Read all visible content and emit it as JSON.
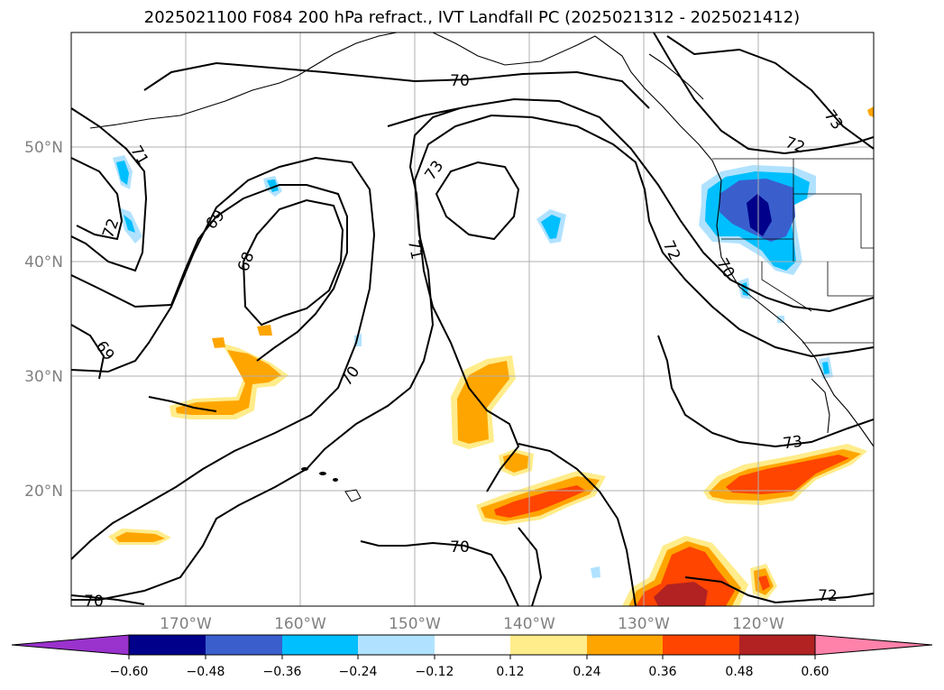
{
  "title": "2025021100 F084 200 hPa refract., IVT Landfall PC (2025021312 - 2025021412)",
  "map": {
    "lat_ticks": [
      "20°N",
      "30°N",
      "40°N",
      "50°N"
    ],
    "lon_ticks": [
      "170°W",
      "160°W",
      "150°W",
      "140°W",
      "130°W",
      "120°W"
    ],
    "contour_labels": [
      "70",
      "70",
      "70",
      "70",
      "71",
      "71",
      "72",
      "72",
      "72",
      "72",
      "73",
      "73",
      "73",
      "69",
      "69",
      "68",
      "70"
    ]
  },
  "colorbar": {
    "tick_labels": [
      "−0.60",
      "−0.48",
      "−0.36",
      "−0.24",
      "−0.12",
      "0.12",
      "0.24",
      "0.36",
      "0.48",
      "0.60"
    ],
    "colors": [
      "#9a32cd",
      "#00008b",
      "#3a5fcd",
      "#00bfff",
      "#b0e2ff",
      "#ffffff",
      "#ffec8b",
      "#ffa500",
      "#ff4500",
      "#b22222",
      "#ff82ab"
    ]
  }
}
